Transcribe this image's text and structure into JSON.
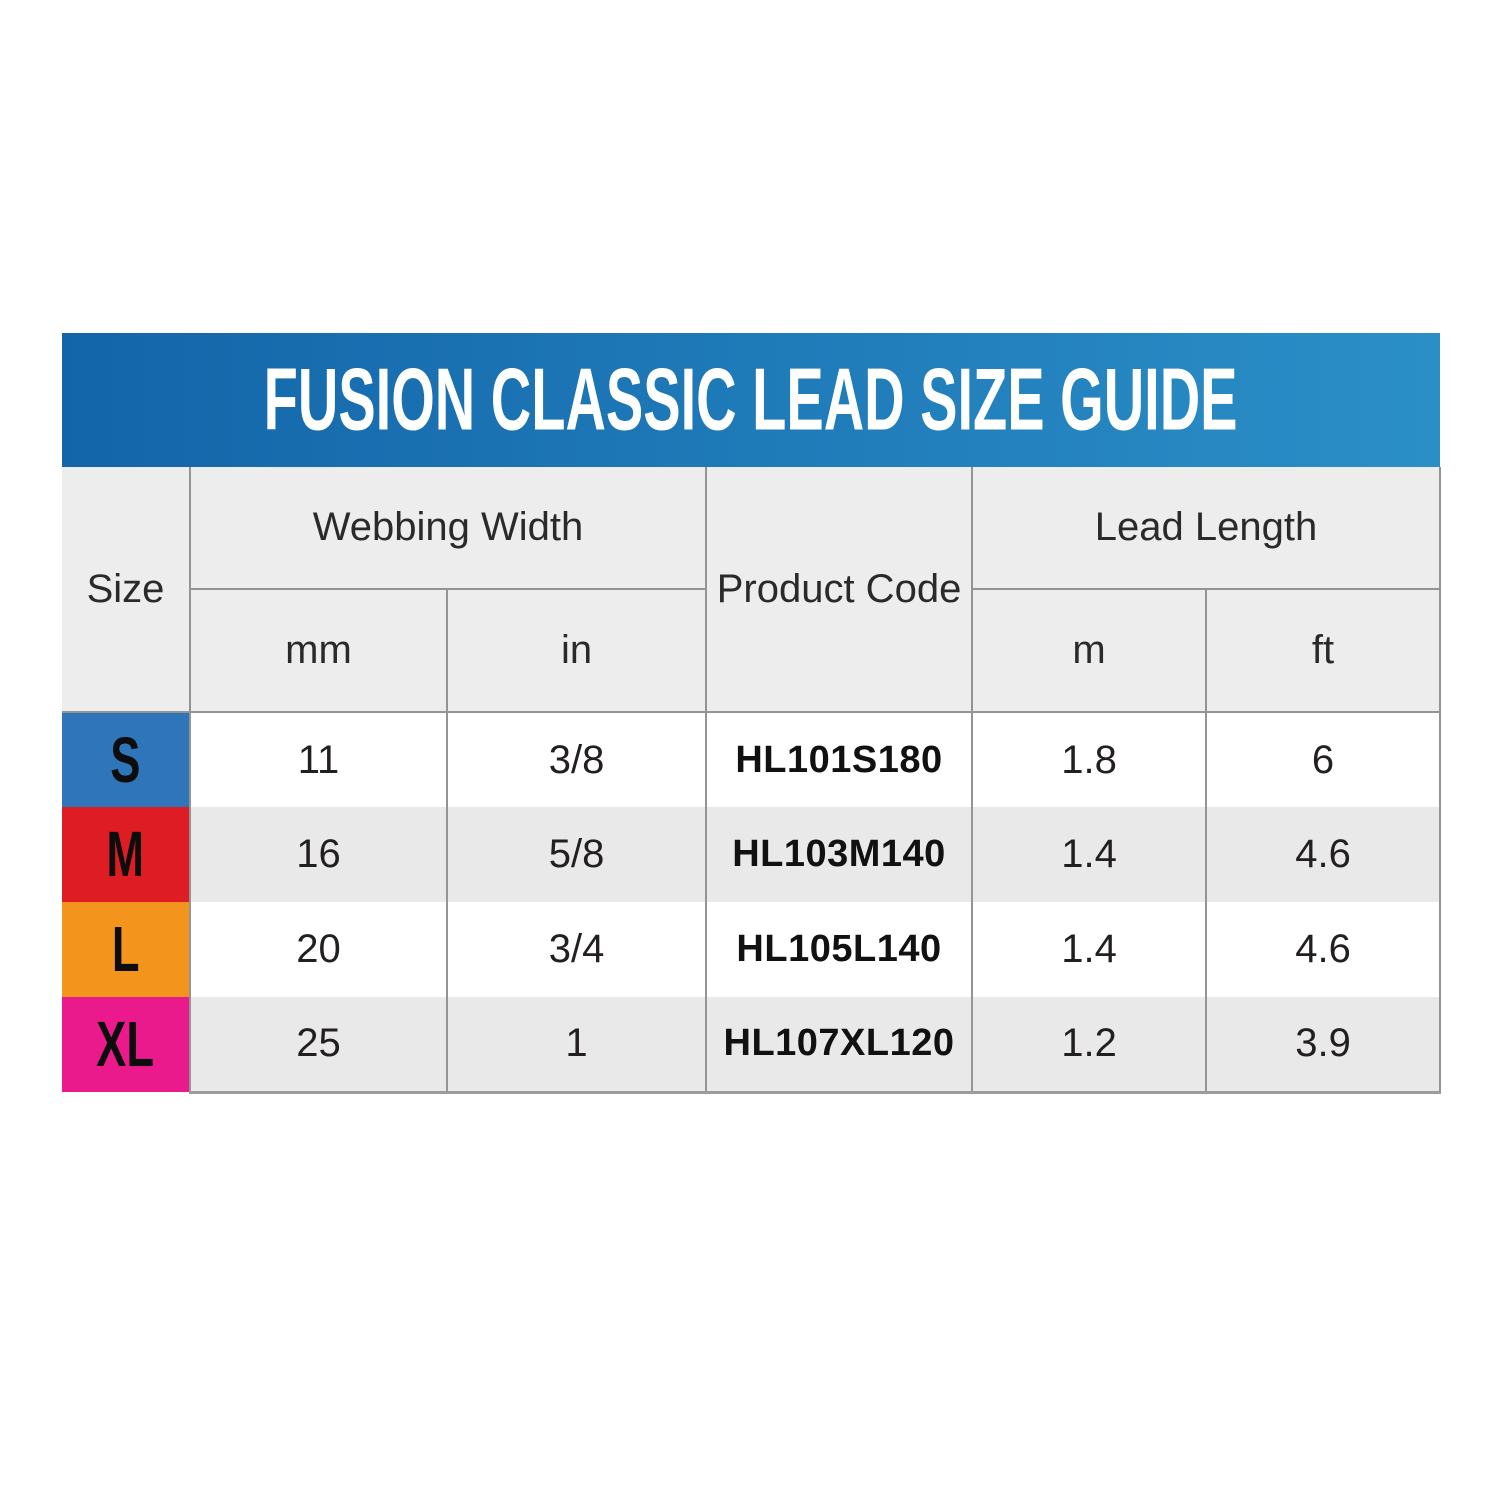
{
  "guide": {
    "title": "FUSION CLASSIC LEAD SIZE GUIDE",
    "headers": {
      "size": "Size",
      "webbing_width": "Webbing Width",
      "product_code": "Product Code",
      "lead_length": "Lead Length",
      "mm": "mm",
      "in": "in",
      "m": "m",
      "ft": "ft"
    },
    "rows": [
      {
        "size": "S",
        "badge_color": "#2e76b9",
        "mm": "11",
        "in": "3/8",
        "product_code": "HL101S180",
        "m": "1.8",
        "ft": "6"
      },
      {
        "size": "M",
        "badge_color": "#dd1c23",
        "mm": "16",
        "in": "5/8",
        "product_code": "HL103M140",
        "m": "1.4",
        "ft": "4.6"
      },
      {
        "size": "L",
        "badge_color": "#f3951d",
        "mm": "20",
        "in": "3/4",
        "product_code": "HL105L140",
        "m": "1.4",
        "ft": "4.6"
      },
      {
        "size": "XL",
        "badge_color": "#eb1a8c",
        "mm": "25",
        "in": "1",
        "product_code": "HL107XL120",
        "m": "1.2",
        "ft": "3.9"
      }
    ],
    "colors": {
      "title_gradient_left": "#1365a9",
      "title_gradient_right": "#2b8fc7",
      "title_text": "#ffffff",
      "header_bg": "#ededed",
      "row_bg": "#ffffff",
      "row_alt_bg": "#e9e9e9",
      "grid_line": "#949494",
      "text": "#231f20",
      "badge_s": "#2e76b9",
      "badge_m": "#dd1c23",
      "badge_l": "#f3951d",
      "badge_xl": "#eb1a8c"
    }
  },
  "chart_data": {
    "type": "table",
    "title": "FUSION CLASSIC LEAD SIZE GUIDE",
    "columns": [
      "Size",
      "Webbing Width (mm)",
      "Webbing Width (in)",
      "Product Code",
      "Lead Length (m)",
      "Lead Length (ft)"
    ],
    "rows": [
      [
        "S",
        11,
        "3/8",
        "HL101S180",
        1.8,
        6
      ],
      [
        "M",
        16,
        "5/8",
        "HL103M140",
        1.4,
        4.6
      ],
      [
        "L",
        20,
        "3/4",
        "HL105L140",
        1.4,
        4.6
      ],
      [
        "XL",
        25,
        "1",
        "HL107XL120",
        1.2,
        3.9
      ]
    ],
    "legend_position": "none",
    "grid": true
  }
}
